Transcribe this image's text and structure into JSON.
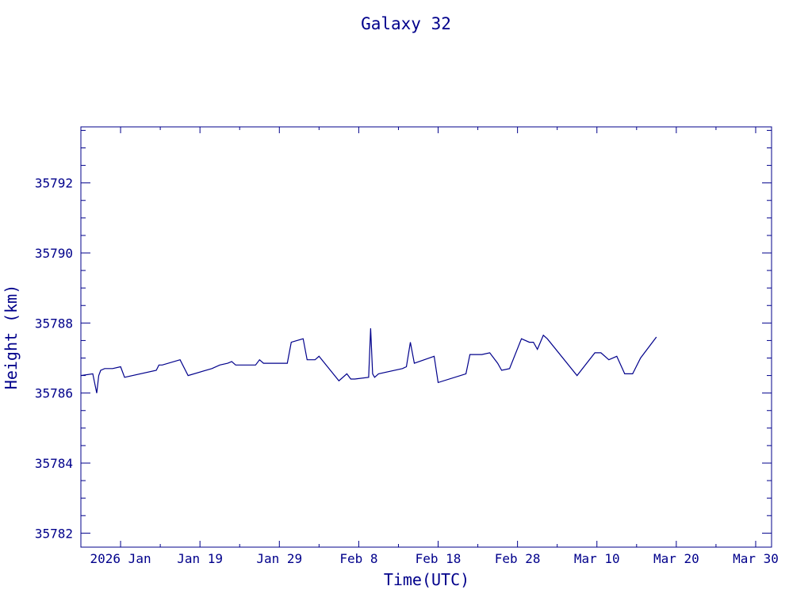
{
  "chart_data": {
    "type": "line",
    "title": "Galaxy 32",
    "xlabel": "Time(UTC)",
    "ylabel": "Height (km)",
    "colors": {
      "axis": "#00008b",
      "line": "#00008b",
      "text": "#00008b",
      "background": "#ffffff"
    },
    "xlim": [
      "2026-01-04",
      "2026-04-01"
    ],
    "ylim": [
      35781.6,
      35793.6
    ],
    "grid": false,
    "x_ticks": [
      {
        "date": "2026-01-09",
        "label": "2026 Jan"
      },
      {
        "date": "2026-01-19",
        "label": "Jan 19"
      },
      {
        "date": "2026-01-29",
        "label": "Jan 29"
      },
      {
        "date": "2026-02-08",
        "label": "Feb  8"
      },
      {
        "date": "2026-02-18",
        "label": "Feb 18"
      },
      {
        "date": "2026-02-28",
        "label": "Feb 28"
      },
      {
        "date": "2026-03-10",
        "label": "Mar 10"
      },
      {
        "date": "2026-03-20",
        "label": "Mar 20"
      },
      {
        "date": "2026-03-30",
        "label": "Mar 30"
      }
    ],
    "y_ticks": [
      {
        "value": 35782,
        "label": "35782"
      },
      {
        "value": 35784,
        "label": "35784"
      },
      {
        "value": 35786,
        "label": "35786"
      },
      {
        "value": 35788,
        "label": "35788"
      },
      {
        "value": 35790,
        "label": "35790"
      },
      {
        "value": 35792,
        "label": "35792"
      }
    ],
    "series": [
      {
        "x": [
          "2026-01-04T00:00",
          "2026-01-05T12:00",
          "2026-01-06T00:00",
          "2026-01-06T06:00",
          "2026-01-06T12:00",
          "2026-01-07T00:00",
          "2026-01-08T00:00",
          "2026-01-09T00:00",
          "2026-01-09T12:00",
          "2026-01-13T12:00",
          "2026-01-13T20:00",
          "2026-01-14T06:00",
          "2026-01-16T12:00",
          "2026-01-17T12:00",
          "2026-01-20T12:00",
          "2026-01-21T12:00",
          "2026-01-22T12:00",
          "2026-01-23T00:00",
          "2026-01-23T12:00",
          "2026-01-26T00:00",
          "2026-01-26T12:00",
          "2026-01-27T00:00",
          "2026-01-30T00:00",
          "2026-01-30T12:00",
          "2026-02-01T00:00",
          "2026-02-01T12:00",
          "2026-02-02T12:00",
          "2026-02-03T00:00",
          "2026-02-05T12:00",
          "2026-02-06T12:00",
          "2026-02-07T00:00",
          "2026-02-07T12:00",
          "2026-02-09T06:00",
          "2026-02-09T12:00",
          "2026-02-09T18:00",
          "2026-02-10T00:00",
          "2026-02-10T12:00",
          "2026-02-13T12:00",
          "2026-02-14T00:00",
          "2026-02-14T12:00",
          "2026-02-15T00:00",
          "2026-02-17T12:00",
          "2026-02-18T00:00",
          "2026-02-21T12:00",
          "2026-02-22T00:00",
          "2026-02-23T12:00",
          "2026-02-24T12:00",
          "2026-02-25T12:00",
          "2026-02-26T00:00",
          "2026-02-27T00:00",
          "2026-02-28T12:00",
          "2026-03-01T12:00",
          "2026-03-02T00:00",
          "2026-03-02T12:00",
          "2026-03-03T06:00",
          "2026-03-03T18:00",
          "2026-03-07T12:00",
          "2026-03-09T18:00",
          "2026-03-10T12:00",
          "2026-03-11T12:00",
          "2026-03-12T12:00",
          "2026-03-13T12:00",
          "2026-03-14T12:00",
          "2026-03-15T12:00",
          "2026-03-17T12:00"
        ],
        "y": [
          35786.5,
          35786.55,
          35786.0,
          35786.5,
          35786.65,
          35786.7,
          35786.7,
          35786.75,
          35786.45,
          35786.65,
          35786.8,
          35786.8,
          35786.95,
          35786.5,
          35786.7,
          35786.8,
          35786.85,
          35786.9,
          35786.8,
          35786.8,
          35786.95,
          35786.85,
          35786.85,
          35787.45,
          35787.55,
          35786.95,
          35786.95,
          35787.05,
          35786.35,
          35786.55,
          35786.4,
          35786.4,
          35786.45,
          35787.85,
          35786.55,
          35786.45,
          35786.55,
          35786.7,
          35786.75,
          35787.45,
          35786.85,
          35787.05,
          35786.3,
          35786.55,
          35787.1,
          35787.1,
          35787.15,
          35786.85,
          35786.65,
          35786.7,
          35787.55,
          35787.45,
          35787.45,
          35787.25,
          35787.65,
          35787.55,
          35786.5,
          35787.15,
          35787.15,
          35786.95,
          35787.05,
          35786.55,
          35786.55,
          35787.0,
          35787.6
        ]
      }
    ]
  }
}
